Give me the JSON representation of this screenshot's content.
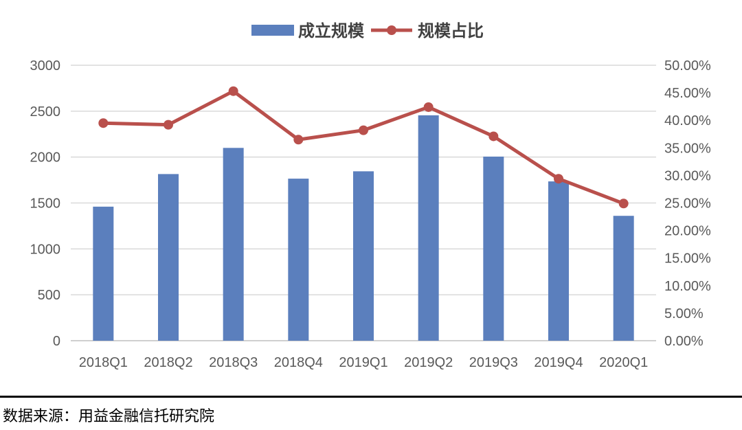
{
  "chart_data": {
    "type": "bar",
    "categories": [
      "2018Q1",
      "2018Q2",
      "2018Q3",
      "2018Q4",
      "2019Q1",
      "2019Q2",
      "2019Q3",
      "2019Q4",
      "2020Q1"
    ],
    "series": [
      {
        "name": "成立规模",
        "type": "bar",
        "axis": "left",
        "color": "#5b7fbd",
        "values": [
          1460,
          1815,
          2100,
          1765,
          1845,
          2455,
          2005,
          1735,
          1360
        ]
      },
      {
        "name": "规模占比",
        "type": "line",
        "axis": "right",
        "color": "#b9504c",
        "values": [
          39.5,
          39.2,
          45.3,
          36.5,
          38.2,
          42.4,
          37.1,
          29.4,
          24.9
        ]
      }
    ],
    "y_left": {
      "ylim": [
        0,
        3000
      ],
      "ticks": [
        "0",
        "500",
        "1000",
        "1500",
        "2000",
        "2500",
        "3000"
      ]
    },
    "y_right": {
      "ylim": [
        0,
        50
      ],
      "ticks": [
        "0.00%",
        "5.00%",
        "10.00%",
        "15.00%",
        "20.00%",
        "25.00%",
        "30.00%",
        "35.00%",
        "40.00%",
        "45.00%",
        "50.00%"
      ]
    },
    "grid": true,
    "legend_position": "top-center"
  },
  "source_note": "数据来源：用益金融信托研究院"
}
